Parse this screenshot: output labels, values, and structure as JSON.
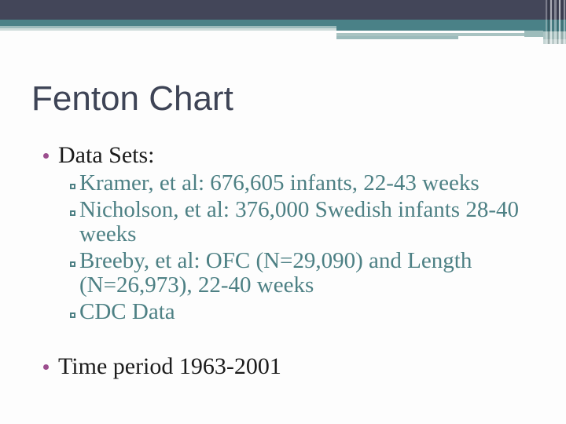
{
  "slide": {
    "title": "Fenton Chart",
    "content": {
      "bullet1": {
        "label": "Data Sets:",
        "items": [
          {
            "text": "Kramer, et al: 676,605 infants, 22-43 weeks"
          },
          {
            "text": "Nicholson, et al: 376,000 Swedish infants 28-40\nweeks"
          },
          {
            "text": "Breeby, et al: OFC (N=29,090) and Length\n(N=26,973), 22-40 weeks"
          },
          {
            "text": "CDC Data"
          }
        ]
      },
      "bullet2": {
        "label": "Time period 1963-2001"
      }
    }
  },
  "theme": {
    "banner_dark_slate": "#434659",
    "banner_teal": "#4a8187",
    "banner_sage": "#a9c3c2",
    "banner_pale_sage": "#cddbda",
    "title_color": "#3e4456",
    "body_text_black": "#1b1b1b",
    "sub_bullet_teal_text": "#4d8084",
    "bullet_dot_purple": "#9c4e8e",
    "background": "#fdfdfd"
  }
}
